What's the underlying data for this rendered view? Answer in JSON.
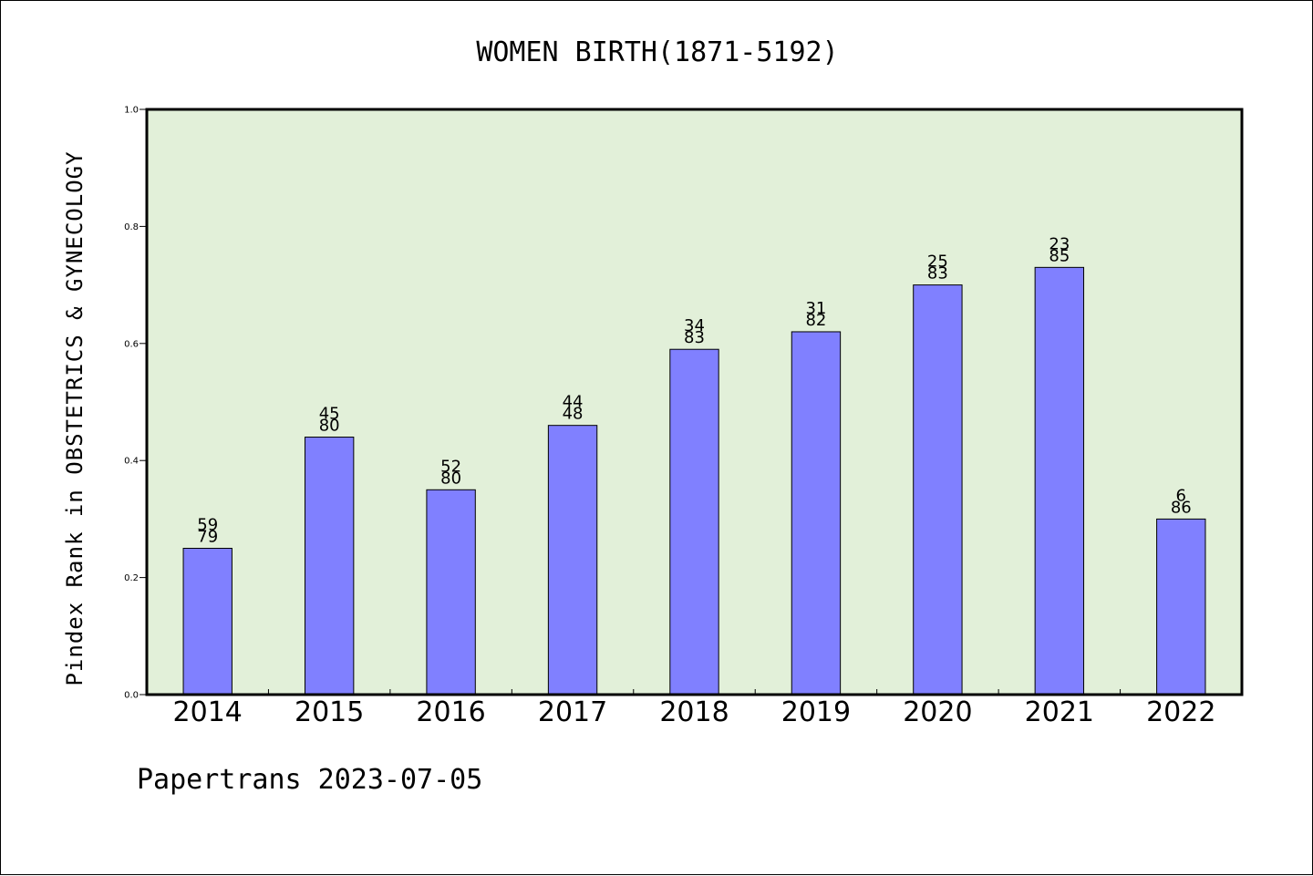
{
  "chart_data": {
    "type": "bar",
    "title": "WOMEN BIRTH(1871-5192)",
    "xlabel": "",
    "ylabel": "Pindex Rank in OBSTETRICS & GYNECOLOGY",
    "categories": [
      "2014",
      "2015",
      "2016",
      "2017",
      "2018",
      "2019",
      "2020",
      "2021",
      "2022"
    ],
    "values": [
      0.25,
      0.44,
      0.35,
      0.46,
      0.59,
      0.62,
      0.7,
      0.73,
      0.3
    ],
    "annotations": [
      [
        "59",
        "79"
      ],
      [
        "45",
        "80"
      ],
      [
        "52",
        "80"
      ],
      [
        "44",
        "48"
      ],
      [
        "34",
        "83"
      ],
      [
        "31",
        "82"
      ],
      [
        "25",
        "83"
      ],
      [
        "23",
        "85"
      ],
      [
        "6",
        "86"
      ]
    ],
    "ylim": [
      0,
      1.0
    ],
    "yticks": [
      "0.0",
      "0.2",
      "0.4",
      "0.6",
      "0.8",
      "1.0"
    ],
    "bar_color": "#8080ff",
    "plot_background": "#e2f0d9",
    "grid": false,
    "legend": "none"
  },
  "footer": "Papertrans 2023-07-05"
}
